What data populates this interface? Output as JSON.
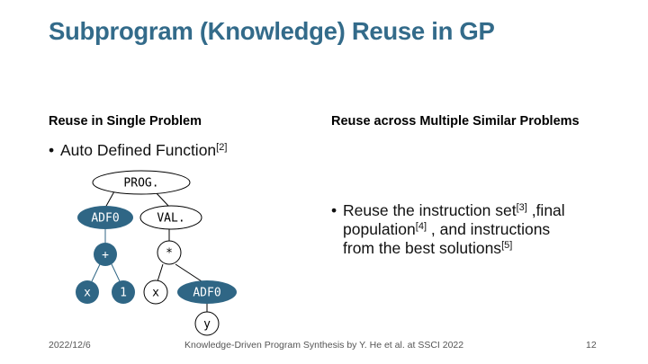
{
  "slide": {
    "title": "Subprogram (Knowledge) Reuse in GP",
    "left": {
      "heading": "Reuse in Single Problem",
      "bullet_text": "Auto Defined Function",
      "bullet_ref": "[2]"
    },
    "right": {
      "heading": "Reuse across Multiple Similar Problems",
      "line1_a": "Reuse the instruction set",
      "ref3": "[3]",
      "line1_b": " ,final",
      "line2_a": "population",
      "ref4": "[4]",
      "line2_b": " , and instructions",
      "line3_a": "from the best solutions",
      "ref5": "[5]"
    },
    "tree": {
      "prog": "PROG.",
      "adf0_a": "ADF0",
      "val": "VAL.",
      "plus": "+",
      "star": "*",
      "x1": "x",
      "one": "1",
      "x2": "x",
      "adf0_b": "ADF0",
      "y": "y"
    },
    "footer": {
      "date": "2022/12/6",
      "citation": "Knowledge-Driven Program Synthesis by Y. He et al. at SSCI 2022",
      "page": "12"
    },
    "colors": {
      "title": "#336b8a",
      "filled_node": "#2f6685",
      "edge_blue": "#2f6685"
    }
  }
}
